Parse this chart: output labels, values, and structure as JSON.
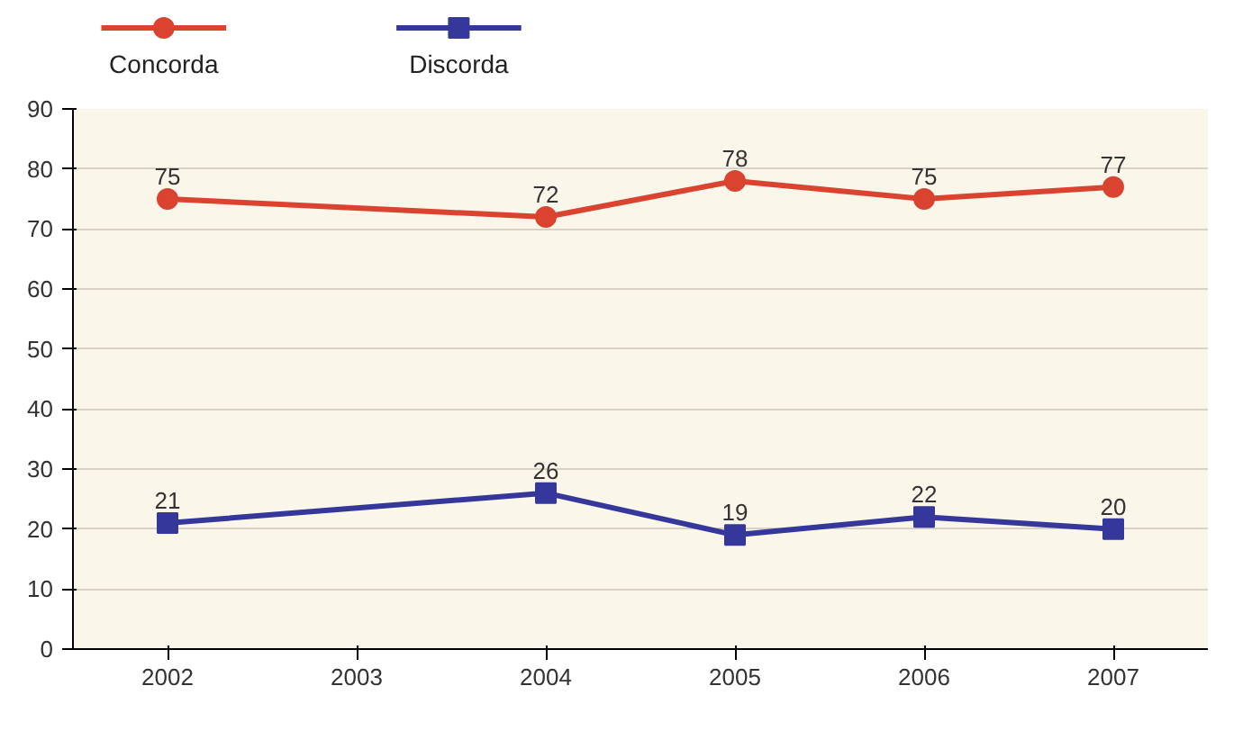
{
  "chart_data": {
    "type": "line",
    "categories": [
      "2002",
      "2003",
      "2004",
      "2005",
      "2006",
      "2007"
    ],
    "series": [
      {
        "name": "Concorda",
        "color": "#d9432f",
        "marker": "circle",
        "values": [
          75,
          null,
          72,
          78,
          75,
          77
        ]
      },
      {
        "name": "Discorda",
        "color": "#35379a",
        "marker": "square",
        "values": [
          21,
          null,
          26,
          19,
          22,
          20
        ]
      }
    ],
    "ylim": [
      0,
      90
    ],
    "yticks": [
      0,
      10,
      20,
      30,
      40,
      50,
      60,
      70,
      80,
      90
    ],
    "grid": "y",
    "legend": "top left",
    "data_labels": true
  }
}
